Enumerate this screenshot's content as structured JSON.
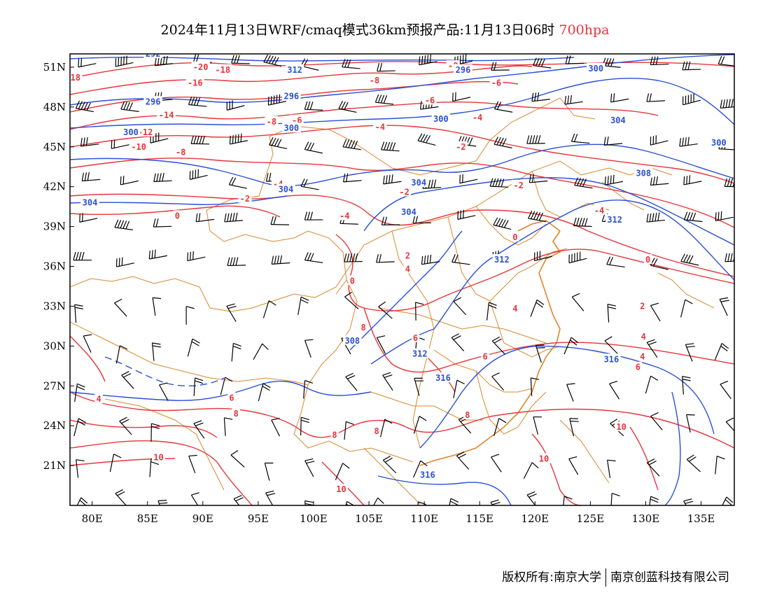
{
  "title": {
    "main": "2024年11月13日WRF/cmaq模式36km预报产品:11月13日06时",
    "level": "700hpa"
  },
  "axes": {
    "lon_labels": [
      "80E",
      "85E",
      "90E",
      "95E",
      "100E",
      "105E",
      "110E",
      "115E",
      "120E",
      "125E",
      "130E",
      "135E"
    ],
    "lat_labels": [
      "51N",
      "48N",
      "45N",
      "42N",
      "39N",
      "36N",
      "33N",
      "30N",
      "27N",
      "24N",
      "21N"
    ],
    "lon_range": [
      78,
      138
    ],
    "lat_range": [
      18,
      52
    ]
  },
  "colors": {
    "temperature": "#e8343a",
    "height": "#2a4fd6",
    "borders": "#d9882e",
    "wind": "#000000"
  },
  "temperature_labels": [
    {
      "text": "18",
      "lon": 78.5,
      "lat": 50.2
    },
    {
      "text": "-20",
      "lon": 89.8,
      "lat": 51.0
    },
    {
      "text": "-18",
      "lon": 91.8,
      "lat": 50.8
    },
    {
      "text": "-16",
      "lon": 89.3,
      "lat": 49.8
    },
    {
      "text": "-14",
      "lon": 86.7,
      "lat": 47.4
    },
    {
      "text": "-12",
      "lon": 84.8,
      "lat": 46.1
    },
    {
      "text": "-10",
      "lon": 84.2,
      "lat": 45.0
    },
    {
      "text": "-8",
      "lon": 88.0,
      "lat": 44.6
    },
    {
      "text": "-8",
      "lon": 96.2,
      "lat": 46.9
    },
    {
      "text": "-8",
      "lon": 105.5,
      "lat": 50.0
    },
    {
      "text": "-8",
      "lon": 112.6,
      "lat": 51.1
    },
    {
      "text": "-6",
      "lon": 110.5,
      "lat": 48.5
    },
    {
      "text": "-6",
      "lon": 116.5,
      "lat": 49.8
    },
    {
      "text": "-6",
      "lon": 98.5,
      "lat": 47.0
    },
    {
      "text": "-4",
      "lon": 106.0,
      "lat": 46.5
    },
    {
      "text": "-4",
      "lon": 114.8,
      "lat": 47.2
    },
    {
      "text": "-4",
      "lon": 96.8,
      "lat": 42.2
    },
    {
      "text": "-4",
      "lon": 102.8,
      "lat": 39.8
    },
    {
      "text": "-4",
      "lon": 125.8,
      "lat": 40.2
    },
    {
      "text": "-2",
      "lon": 113.3,
      "lat": 45.0
    },
    {
      "text": "-2",
      "lon": 93.8,
      "lat": 41.1
    },
    {
      "text": "-2",
      "lon": 108.2,
      "lat": 41.6
    },
    {
      "text": "-2",
      "lon": 118.5,
      "lat": 42.1
    },
    {
      "text": "0",
      "lon": 87.7,
      "lat": 39.8
    },
    {
      "text": "0",
      "lon": 103.5,
      "lat": 34.9
    },
    {
      "text": "0",
      "lon": 118.2,
      "lat": 38.2
    },
    {
      "text": "0",
      "lon": 130.2,
      "lat": 36.5
    },
    {
      "text": "2",
      "lon": 108.5,
      "lat": 36.8
    },
    {
      "text": "2",
      "lon": 129.7,
      "lat": 33.0
    },
    {
      "text": "4",
      "lon": 108.5,
      "lat": 35.8
    },
    {
      "text": "4",
      "lon": 118.2,
      "lat": 32.8
    },
    {
      "text": "4",
      "lon": 129.8,
      "lat": 30.7
    },
    {
      "text": "4",
      "lon": 129.7,
      "lat": 29.2
    },
    {
      "text": "6",
      "lon": 109.2,
      "lat": 30.6
    },
    {
      "text": "6",
      "lon": 115.5,
      "lat": 29.2
    },
    {
      "text": "6",
      "lon": 129.3,
      "lat": 28.4
    },
    {
      "text": "6",
      "lon": 92.6,
      "lat": 26.1
    },
    {
      "text": "4",
      "lon": 80.6,
      "lat": 26.0
    },
    {
      "text": "8",
      "lon": 93.0,
      "lat": 24.9
    },
    {
      "text": "8",
      "lon": 101.9,
      "lat": 23.3
    },
    {
      "text": "8",
      "lon": 105.7,
      "lat": 23.6
    },
    {
      "text": "8",
      "lon": 113.9,
      "lat": 24.8
    },
    {
      "text": "8",
      "lon": 104.5,
      "lat": 31.4
    },
    {
      "text": "10",
      "lon": 86.0,
      "lat": 21.6
    },
    {
      "text": "10",
      "lon": 120.8,
      "lat": 21.5
    },
    {
      "text": "10",
      "lon": 127.8,
      "lat": 23.9
    },
    {
      "text": "10",
      "lon": 102.5,
      "lat": 19.2
    }
  ],
  "height_labels": [
    {
      "text": "292",
      "lon": 85.5,
      "lat": 52.0
    },
    {
      "text": "312",
      "lon": 98.3,
      "lat": 50.8
    },
    {
      "text": "296",
      "lon": 98.0,
      "lat": 48.8
    },
    {
      "text": "296",
      "lon": 85.5,
      "lat": 48.4
    },
    {
      "text": "296",
      "lon": 113.5,
      "lat": 50.8
    },
    {
      "text": "300",
      "lon": 83.5,
      "lat": 46.1
    },
    {
      "text": "300",
      "lon": 98.0,
      "lat": 46.4
    },
    {
      "text": "300",
      "lon": 111.5,
      "lat": 47.1
    },
    {
      "text": "300",
      "lon": 125.5,
      "lat": 50.9
    },
    {
      "text": "300",
      "lon": 136.6,
      "lat": 45.3
    },
    {
      "text": "304",
      "lon": 127.5,
      "lat": 47.0
    },
    {
      "text": "304",
      "lon": 79.8,
      "lat": 40.8
    },
    {
      "text": "304",
      "lon": 97.5,
      "lat": 41.8
    },
    {
      "text": "304",
      "lon": 109.5,
      "lat": 42.3
    },
    {
      "text": "304",
      "lon": 108.6,
      "lat": 40.1
    },
    {
      "text": "308",
      "lon": 129.8,
      "lat": 43.0
    },
    {
      "text": "308",
      "lon": 103.5,
      "lat": 30.4
    },
    {
      "text": "312",
      "lon": 127.2,
      "lat": 39.5
    },
    {
      "text": "312",
      "lon": 117.0,
      "lat": 36.5
    },
    {
      "text": "312",
      "lon": 109.6,
      "lat": 29.4
    },
    {
      "text": "316",
      "lon": 111.7,
      "lat": 27.6
    },
    {
      "text": "316",
      "lon": 110.3,
      "lat": 20.3
    },
    {
      "text": "316",
      "lon": 126.9,
      "lat": 29.0
    }
  ],
  "copyright": {
    "left": "版权所有:南京大学",
    "right": "南京创蓝科技有限公司"
  }
}
